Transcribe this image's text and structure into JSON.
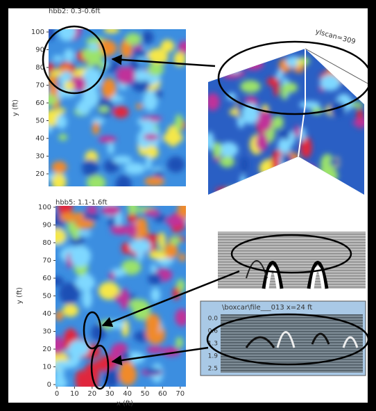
{
  "panels": [
    {
      "title": "hbb2: 0.3-0.6ft",
      "y_label": "y (ft)",
      "y_ticks": [
        100,
        90,
        80,
        70,
        60,
        50,
        40,
        30,
        20
      ]
    },
    {
      "title": "hbb5: 1.1-1.6ft",
      "y_label": "y (ft)",
      "x_label": "x (ft)",
      "y_ticks": [
        100,
        90,
        80,
        70,
        60,
        50,
        40,
        30,
        20,
        10,
        0
      ],
      "x_ticks": [
        0,
        10,
        20,
        30,
        40,
        50,
        60,
        70
      ]
    }
  ],
  "scan_3d": {
    "label": "ylscan=309"
  },
  "radargram": {
    "title": "\\boxcar\\file___013  x=24 ft",
    "depth_ticks": [
      "0.0",
      "0.6",
      "1.3",
      "1.9",
      "2.5"
    ]
  }
}
